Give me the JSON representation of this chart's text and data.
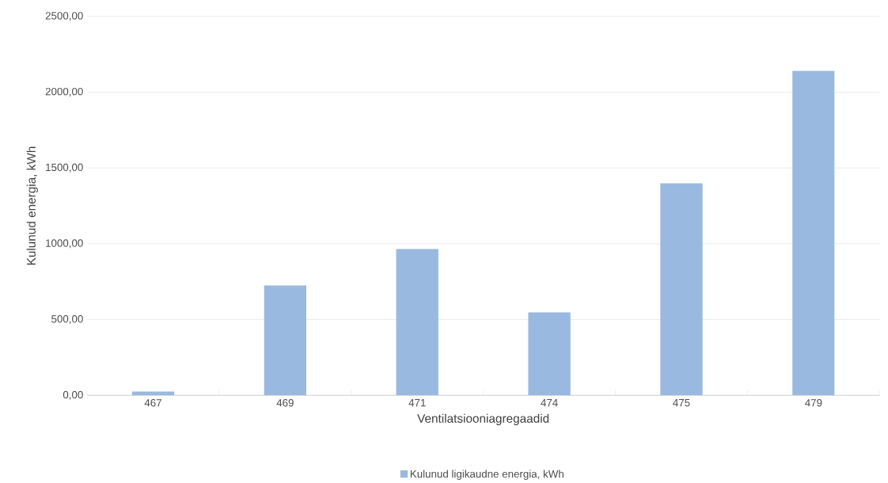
{
  "chart_data": {
    "type": "bar",
    "xlabel": "Ventilatsiooniagregaadid",
    "ylabel": "Kulunud energia, kWh",
    "categories": [
      "467",
      "469",
      "471",
      "474",
      "475",
      "479"
    ],
    "series": [
      {
        "name": "Kulunud ligikaudne energia, kWh",
        "color": "#99b9e0",
        "values": [
          25,
          725,
          965,
          548,
          1399,
          2140
        ]
      }
    ],
    "ylim": [
      0,
      2500
    ],
    "yticks": [
      {
        "value": 0,
        "label": "0,00"
      },
      {
        "value": 500,
        "label": "500,00"
      },
      {
        "value": 1000,
        "label": "1000,00"
      },
      {
        "value": 1500,
        "label": "1500,00"
      },
      {
        "value": 2000,
        "label": "2000,00"
      },
      {
        "value": 2500,
        "label": "2500,00"
      }
    ],
    "grid": "y",
    "legend": "bottom"
  }
}
